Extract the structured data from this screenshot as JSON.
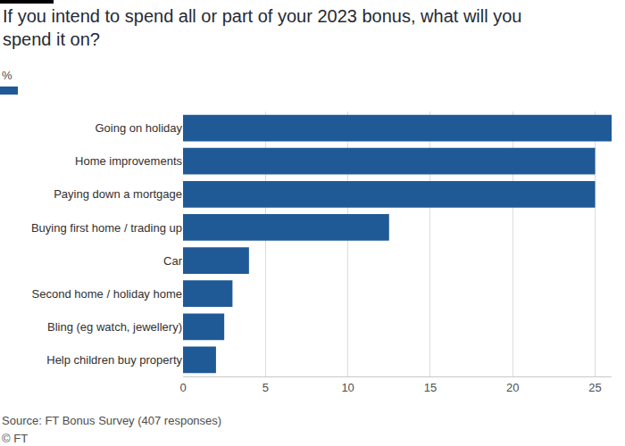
{
  "chart_data": {
    "type": "bar",
    "orientation": "horizontal",
    "title": "If you intend to spend all or part of your 2023 bonus, what will you spend it on?",
    "subtitle": "%",
    "categories": [
      "Going on holiday",
      "Home improvements",
      "Paying down a mortgage",
      "Buying first home / trading up",
      "Car",
      "Second home / holiday home",
      "Bling (eg watch, jewellery)",
      "Help children buy property"
    ],
    "values": [
      26,
      25,
      25,
      12.5,
      4,
      3,
      2.5,
      2
    ],
    "color": "#1f5a96",
    "xlim": [
      0,
      26
    ],
    "xticks": [
      0,
      5,
      10,
      15,
      20,
      25
    ],
    "grid": true,
    "annotations": [
      "Source: FT Bonus Survey (407 responses)",
      "© FT"
    ]
  }
}
